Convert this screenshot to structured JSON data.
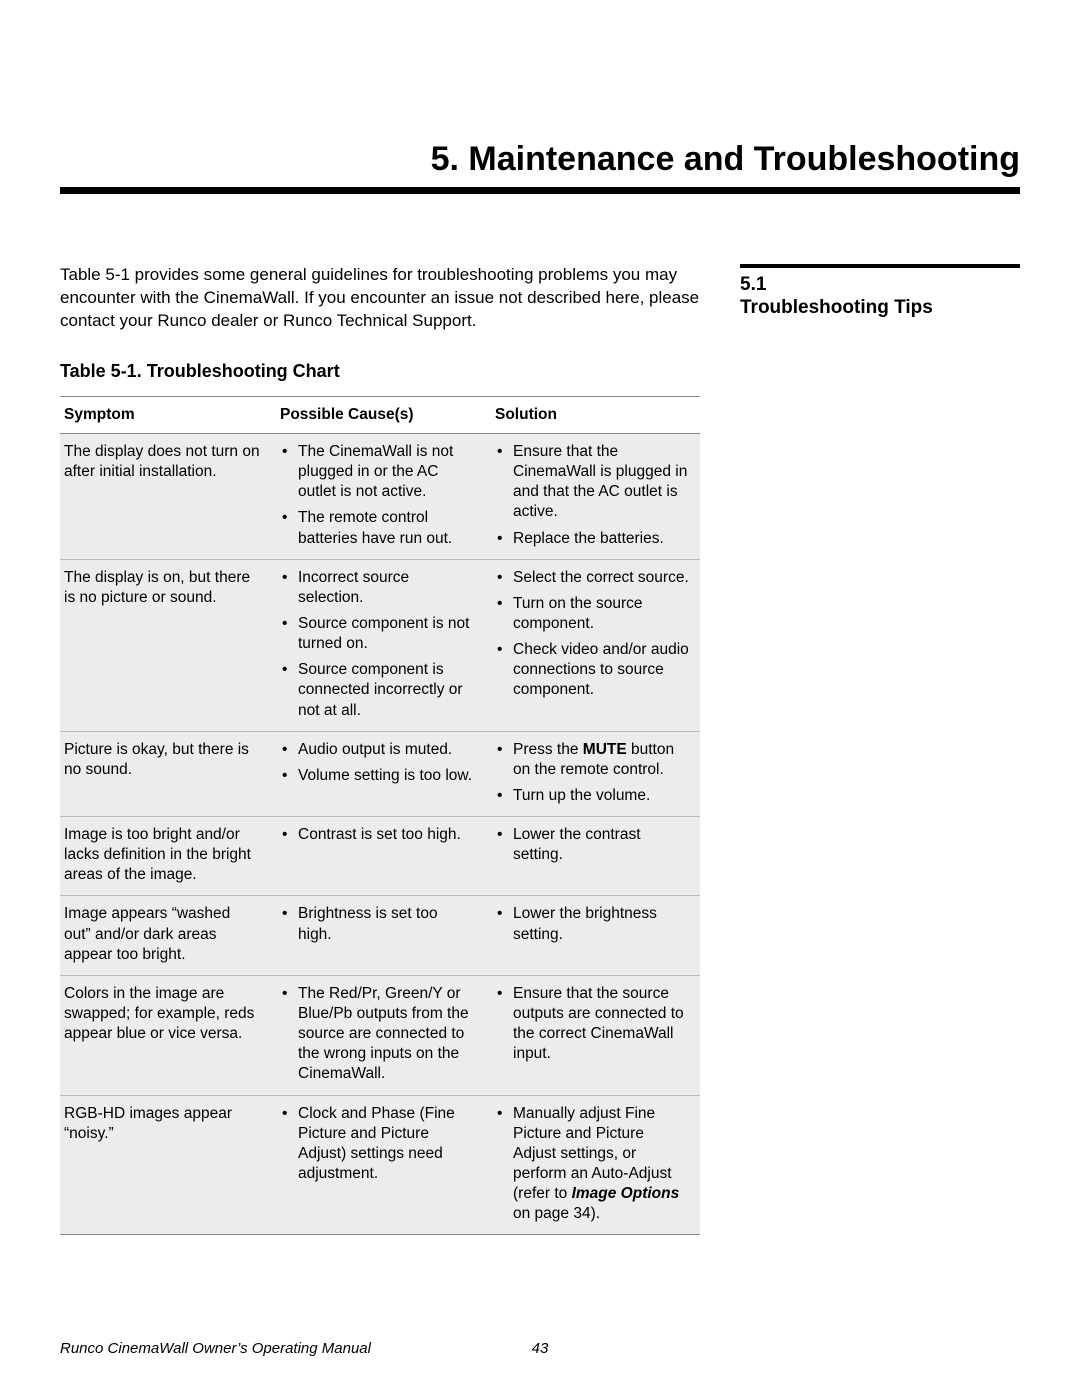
{
  "chapter_title": "5. Maintenance and Troubleshooting",
  "intro": "Table 5-1 provides some general guidelines for troubleshooting problems you may encounter with the CinemaWall. If you encounter an issue not described here, please contact your Runco dealer or Runco Technical Support.",
  "section": {
    "number": "5.1",
    "title": "Troubleshooting Tips"
  },
  "table_caption": "Table 5-1. Troubleshooting Chart",
  "headers": {
    "symptom": "Symptom",
    "cause": "Possible Cause(s)",
    "solution": "Solution"
  },
  "rows": [
    {
      "symptom": "The display does not turn on after initial installation.",
      "causes": [
        "The CinemaWall is not plugged in or the AC outlet is not active.",
        "The remote control batteries have run out."
      ],
      "solutions": [
        "Ensure that the CinemaWall is plugged in and that the AC outlet is active.",
        "Replace the batteries."
      ]
    },
    {
      "symptom": "The display is on, but there is no picture or sound.",
      "causes": [
        "Incorrect source selection.",
        "Source component is not turned on.",
        "Source component is connected incorrectly or not at all."
      ],
      "solutions": [
        "Select the correct source.",
        "Turn on the source component.",
        "Check video and/or audio connections to source component."
      ]
    },
    {
      "symptom": "Picture is okay, but there is no sound.",
      "causes": [
        "Audio output is muted.",
        "Volume setting is too low."
      ],
      "solutions_html": [
        "Press the <b>MUTE</b> button on the remote control.",
        "Turn up the volume."
      ]
    },
    {
      "symptom": "Image is too bright and/or lacks definition in the bright areas of the image.",
      "causes": [
        "Contrast is set too high."
      ],
      "solutions": [
        "Lower the contrast setting."
      ]
    },
    {
      "symptom": "Image appears “washed out” and/or dark areas appear too bright.",
      "causes": [
        "Brightness is set too high."
      ],
      "solutions": [
        "Lower the brightness setting."
      ]
    },
    {
      "symptom": "Colors in the image are swapped; for example, reds appear blue or vice versa.",
      "causes": [
        "The Red/Pr, Green/Y or Blue/Pb outputs from the source are connected to the wrong inputs on the CinemaWall."
      ],
      "solutions": [
        "Ensure that the source outputs are connected to the correct CinemaWall input."
      ]
    },
    {
      "symptom": "RGB-HD images appear “noisy.”",
      "causes": [
        "Clock and Phase (Fine Picture and Picture Adjust) settings need adjustment."
      ],
      "solutions_html": [
        "Manually adjust Fine Picture and Picture Adjust settings, or perform an Auto-Adjust (refer to <i class=\"em\">Image Options</i> on page 34)."
      ]
    }
  ],
  "footer": {
    "left": "Runco CinemaWall Owner’s Operating Manual",
    "page": "43"
  },
  "colors": {
    "row_bg": "#ececec",
    "border": "#888888",
    "inner_border": "#b9b9b9",
    "text": "#000000",
    "background": "#ffffff"
  }
}
